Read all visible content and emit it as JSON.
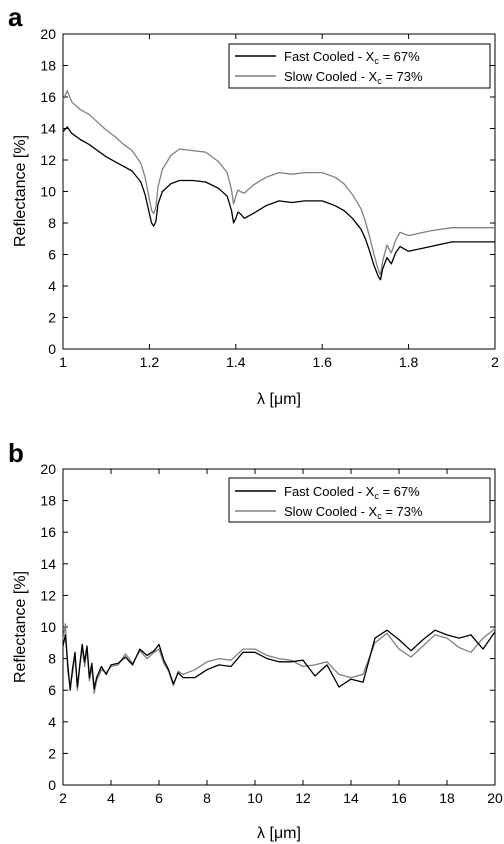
{
  "colors": {
    "fast": "#000000",
    "slow": "#808080",
    "axis": "#000000"
  },
  "chart_data": [
    {
      "type": "line",
      "panel": "a",
      "xlabel": "λ [μm]",
      "ylabel": "Reflectance [%]",
      "xlim": [
        1,
        2
      ],
      "ylim": [
        0,
        20
      ],
      "xticks": [
        "1",
        "1.2",
        "1.4",
        "1.6",
        "1.8",
        "2"
      ],
      "xtick_values": [
        1,
        1.2,
        1.4,
        1.6,
        1.8,
        2
      ],
      "yticks": [
        "0",
        "2",
        "4",
        "6",
        "8",
        "10",
        "12",
        "14",
        "16",
        "18",
        "20"
      ],
      "ytick_values": [
        0,
        2,
        4,
        6,
        8,
        10,
        12,
        14,
        16,
        18,
        20
      ],
      "grid": false,
      "legend": "top-right",
      "series": [
        {
          "name": "Fast Cooled - X_c = 67%",
          "legend_main": "Fast Cooled - X",
          "legend_sub": "c",
          "legend_tail": " = 67%",
          "x": [
            1.0,
            1.01,
            1.02,
            1.04,
            1.06,
            1.08,
            1.1,
            1.12,
            1.14,
            1.16,
            1.18,
            1.19,
            1.2,
            1.205,
            1.21,
            1.215,
            1.22,
            1.23,
            1.25,
            1.27,
            1.3,
            1.33,
            1.36,
            1.38,
            1.39,
            1.395,
            1.4,
            1.405,
            1.41,
            1.42,
            1.44,
            1.47,
            1.5,
            1.53,
            1.56,
            1.6,
            1.63,
            1.65,
            1.67,
            1.69,
            1.7,
            1.71,
            1.72,
            1.73,
            1.735,
            1.74,
            1.75,
            1.76,
            1.77,
            1.78,
            1.8,
            1.85,
            1.9,
            1.95,
            2.0
          ],
          "y": [
            13.8,
            14.1,
            13.7,
            13.3,
            13.0,
            12.6,
            12.2,
            11.9,
            11.6,
            11.3,
            10.6,
            9.8,
            8.6,
            8.0,
            7.8,
            8.1,
            9.2,
            10.0,
            10.5,
            10.7,
            10.7,
            10.6,
            10.2,
            9.7,
            8.8,
            8.0,
            8.3,
            8.7,
            8.6,
            8.3,
            8.6,
            9.1,
            9.4,
            9.3,
            9.4,
            9.4,
            9.1,
            8.8,
            8.3,
            7.6,
            7.0,
            6.2,
            5.3,
            4.6,
            4.4,
            5.1,
            5.8,
            5.4,
            6.1,
            6.5,
            6.2,
            6.5,
            6.8,
            6.8,
            6.8
          ]
        },
        {
          "name": "Slow Cooled - X_c = 73%",
          "legend_main": "Slow Cooled - X",
          "legend_sub": "c",
          "legend_tail": " = 73%",
          "x": [
            1.0,
            1.01,
            1.02,
            1.04,
            1.06,
            1.08,
            1.1,
            1.12,
            1.14,
            1.16,
            1.18,
            1.19,
            1.2,
            1.205,
            1.21,
            1.215,
            1.22,
            1.23,
            1.25,
            1.27,
            1.3,
            1.33,
            1.36,
            1.38,
            1.39,
            1.395,
            1.4,
            1.405,
            1.41,
            1.42,
            1.44,
            1.47,
            1.5,
            1.53,
            1.56,
            1.6,
            1.63,
            1.65,
            1.67,
            1.69,
            1.7,
            1.71,
            1.72,
            1.73,
            1.735,
            1.74,
            1.75,
            1.76,
            1.77,
            1.78,
            1.8,
            1.85,
            1.9,
            1.95,
            2.0
          ],
          "y": [
            15.8,
            16.4,
            15.7,
            15.2,
            14.9,
            14.4,
            13.9,
            13.5,
            13.0,
            12.6,
            11.8,
            10.9,
            9.5,
            8.8,
            8.6,
            9.0,
            10.3,
            11.4,
            12.3,
            12.7,
            12.6,
            12.5,
            11.9,
            11.2,
            10.1,
            9.2,
            9.7,
            10.1,
            10.0,
            9.9,
            10.4,
            10.9,
            11.2,
            11.1,
            11.2,
            11.2,
            10.9,
            10.5,
            9.8,
            8.9,
            8.1,
            7.1,
            6.0,
            5.0,
            4.7,
            5.6,
            6.6,
            6.1,
            6.9,
            7.4,
            7.2,
            7.5,
            7.7,
            7.7,
            7.7
          ]
        }
      ]
    },
    {
      "type": "line",
      "panel": "b",
      "xlabel": "λ [μm]",
      "ylabel": "Reflectance [%]",
      "xlim": [
        2,
        20
      ],
      "ylim": [
        0,
        20
      ],
      "xticks": [
        "2",
        "4",
        "6",
        "8",
        "10",
        "12",
        "14",
        "16",
        "18",
        "20"
      ],
      "xtick_values": [
        2,
        4,
        6,
        8,
        10,
        12,
        14,
        16,
        18,
        20
      ],
      "yticks": [
        "0",
        "2",
        "4",
        "6",
        "8",
        "10",
        "12",
        "14",
        "16",
        "18",
        "20"
      ],
      "ytick_values": [
        0,
        2,
        4,
        6,
        8,
        10,
        12,
        14,
        16,
        18,
        20
      ],
      "grid": false,
      "legend": "top-right",
      "series": [
        {
          "name": "Fast Cooled - X_c = 67%",
          "legend_main": "Fast Cooled - X",
          "legend_sub": "c",
          "legend_tail": " = 67%",
          "x": [
            2.0,
            2.1,
            2.2,
            2.3,
            2.4,
            2.5,
            2.6,
            2.7,
            2.8,
            2.9,
            3.0,
            3.1,
            3.2,
            3.3,
            3.4,
            3.6,
            3.8,
            4.0,
            4.3,
            4.6,
            4.9,
            5.2,
            5.5,
            5.8,
            6.0,
            6.2,
            6.4,
            6.6,
            6.8,
            7.0,
            7.5,
            8.0,
            8.5,
            9.0,
            9.5,
            10.0,
            10.5,
            11.0,
            11.5,
            12.0,
            12.5,
            13.0,
            13.5,
            14.0,
            14.5,
            15.0,
            15.5,
            16.0,
            16.5,
            17.0,
            17.5,
            18.0,
            18.5,
            19.0,
            19.5,
            20.0
          ],
          "y": [
            8.8,
            9.5,
            7.6,
            6.0,
            7.4,
            8.4,
            6.2,
            7.6,
            8.9,
            7.8,
            8.8,
            6.8,
            7.7,
            6.1,
            6.8,
            7.5,
            7.0,
            7.6,
            7.7,
            8.1,
            7.6,
            8.6,
            8.2,
            8.5,
            8.9,
            7.9,
            7.3,
            6.4,
            7.1,
            6.8,
            6.8,
            7.3,
            7.6,
            7.5,
            8.4,
            8.4,
            8.0,
            7.8,
            7.8,
            7.9,
            6.9,
            7.6,
            6.2,
            6.7,
            6.5,
            9.3,
            9.8,
            9.2,
            8.5,
            9.2,
            9.8,
            9.5,
            9.3,
            9.5,
            8.6,
            9.7
          ]
        },
        {
          "name": "Slow Cooled - X_c = 73%",
          "legend_main": "Slow Cooled - X",
          "legend_sub": "c",
          "legend_tail": " = 73%",
          "x": [
            2.0,
            2.1,
            2.2,
            2.3,
            2.4,
            2.5,
            2.6,
            2.7,
            2.8,
            2.9,
            3.0,
            3.1,
            3.2,
            3.3,
            3.4,
            3.6,
            3.8,
            4.0,
            4.3,
            4.6,
            4.9,
            5.2,
            5.5,
            5.8,
            6.0,
            6.2,
            6.4,
            6.6,
            6.8,
            7.0,
            7.5,
            8.0,
            8.5,
            9.0,
            9.5,
            10.0,
            10.5,
            11.0,
            11.5,
            12.0,
            12.5,
            13.0,
            13.5,
            14.0,
            14.5,
            15.0,
            15.5,
            16.0,
            16.5,
            17.0,
            17.5,
            18.0,
            18.5,
            19.0,
            19.5,
            20.0
          ],
          "y": [
            9.2,
            10.2,
            7.2,
            6.2,
            7.1,
            8.2,
            6.0,
            7.5,
            8.7,
            7.5,
            8.6,
            6.6,
            7.5,
            5.8,
            6.6,
            7.3,
            7.1,
            7.5,
            7.6,
            8.3,
            7.7,
            8.5,
            8.0,
            8.4,
            8.6,
            7.7,
            7.2,
            6.3,
            7.2,
            7.0,
            7.3,
            7.8,
            8.0,
            7.9,
            8.6,
            8.6,
            8.2,
            8.0,
            7.9,
            7.5,
            7.6,
            7.8,
            7.0,
            6.8,
            7.0,
            9.0,
            9.6,
            8.6,
            8.1,
            8.8,
            9.5,
            9.3,
            8.7,
            8.4,
            9.3,
            9.9
          ]
        }
      ]
    }
  ]
}
